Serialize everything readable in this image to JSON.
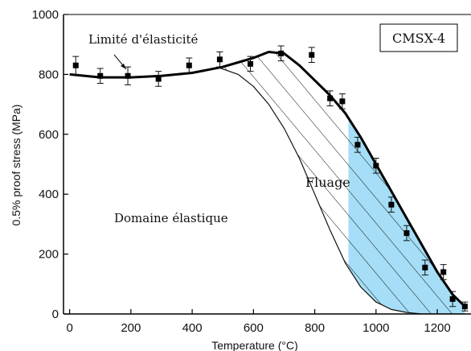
{
  "chart_data": {
    "type": "scatter",
    "title": "",
    "xlabel": "Temperature (°C)",
    "ylabel": "0.5% proof stress (MPa)",
    "xlim": [
      -20,
      1310
    ],
    "ylim": [
      0,
      1000
    ],
    "x_ticks": [
      0,
      200,
      400,
      600,
      800,
      1000,
      1200
    ],
    "y_ticks": [
      0,
      200,
      400,
      600,
      800,
      1000
    ],
    "grid": false,
    "legend": "none",
    "series": [
      {
        "kind": "points",
        "x": [
          20,
          100,
          190,
          290,
          390,
          490,
          590,
          690,
          790,
          850,
          890,
          940,
          1000,
          1050,
          1100,
          1160,
          1220,
          1250,
          1290
        ],
        "y": [
          830,
          795,
          795,
          785,
          830,
          850,
          835,
          870,
          865,
          720,
          710,
          565,
          495,
          365,
          270,
          155,
          140,
          50,
          25
        ],
        "err": [
          30,
          25,
          30,
          25,
          25,
          25,
          25,
          25,
          25,
          25,
          25,
          25,
          25,
          25,
          25,
          25,
          25,
          25,
          15
        ]
      },
      {
        "kind": "fit-curve",
        "x": [
          0,
          50,
          100,
          200,
          300,
          400,
          500,
          550,
          600,
          650,
          700,
          750,
          800,
          850,
          900,
          950,
          1000,
          1050,
          1100,
          1150,
          1200,
          1250,
          1290
        ],
        "y": [
          800,
          795,
          790,
          790,
          795,
          805,
          825,
          840,
          855,
          875,
          870,
          830,
          780,
          730,
          670,
          590,
          500,
          410,
          320,
          230,
          140,
          65,
          25
        ]
      },
      {
        "kind": "lower-boundary",
        "x": [
          480,
          550,
          600,
          650,
          700,
          750,
          800,
          850,
          900,
          950,
          1000,
          1050,
          1100,
          1150,
          1200,
          1250,
          1290
        ],
        "y": [
          825,
          800,
          760,
          700,
          620,
          520,
          400,
          280,
          170,
          90,
          40,
          15,
          5,
          0,
          0,
          0,
          0
        ]
      }
    ],
    "regions": [
      {
        "kind": "hatched",
        "between": [
          "fit-curve",
          "lower-boundary"
        ],
        "x_range": [
          480,
          1290
        ]
      },
      {
        "kind": "shaded",
        "color": "#a5def6",
        "between": [
          "fit-curve",
          "lower-boundary"
        ],
        "x_range": [
          910,
          1290
        ]
      }
    ],
    "annotations": {
      "box_label": "CMSX-4",
      "limit_label": "Limité d'élasticité",
      "fluage_label": "Fluage",
      "fluage_color": "#b01010",
      "domaine_label": "Domaine élastique"
    }
  }
}
